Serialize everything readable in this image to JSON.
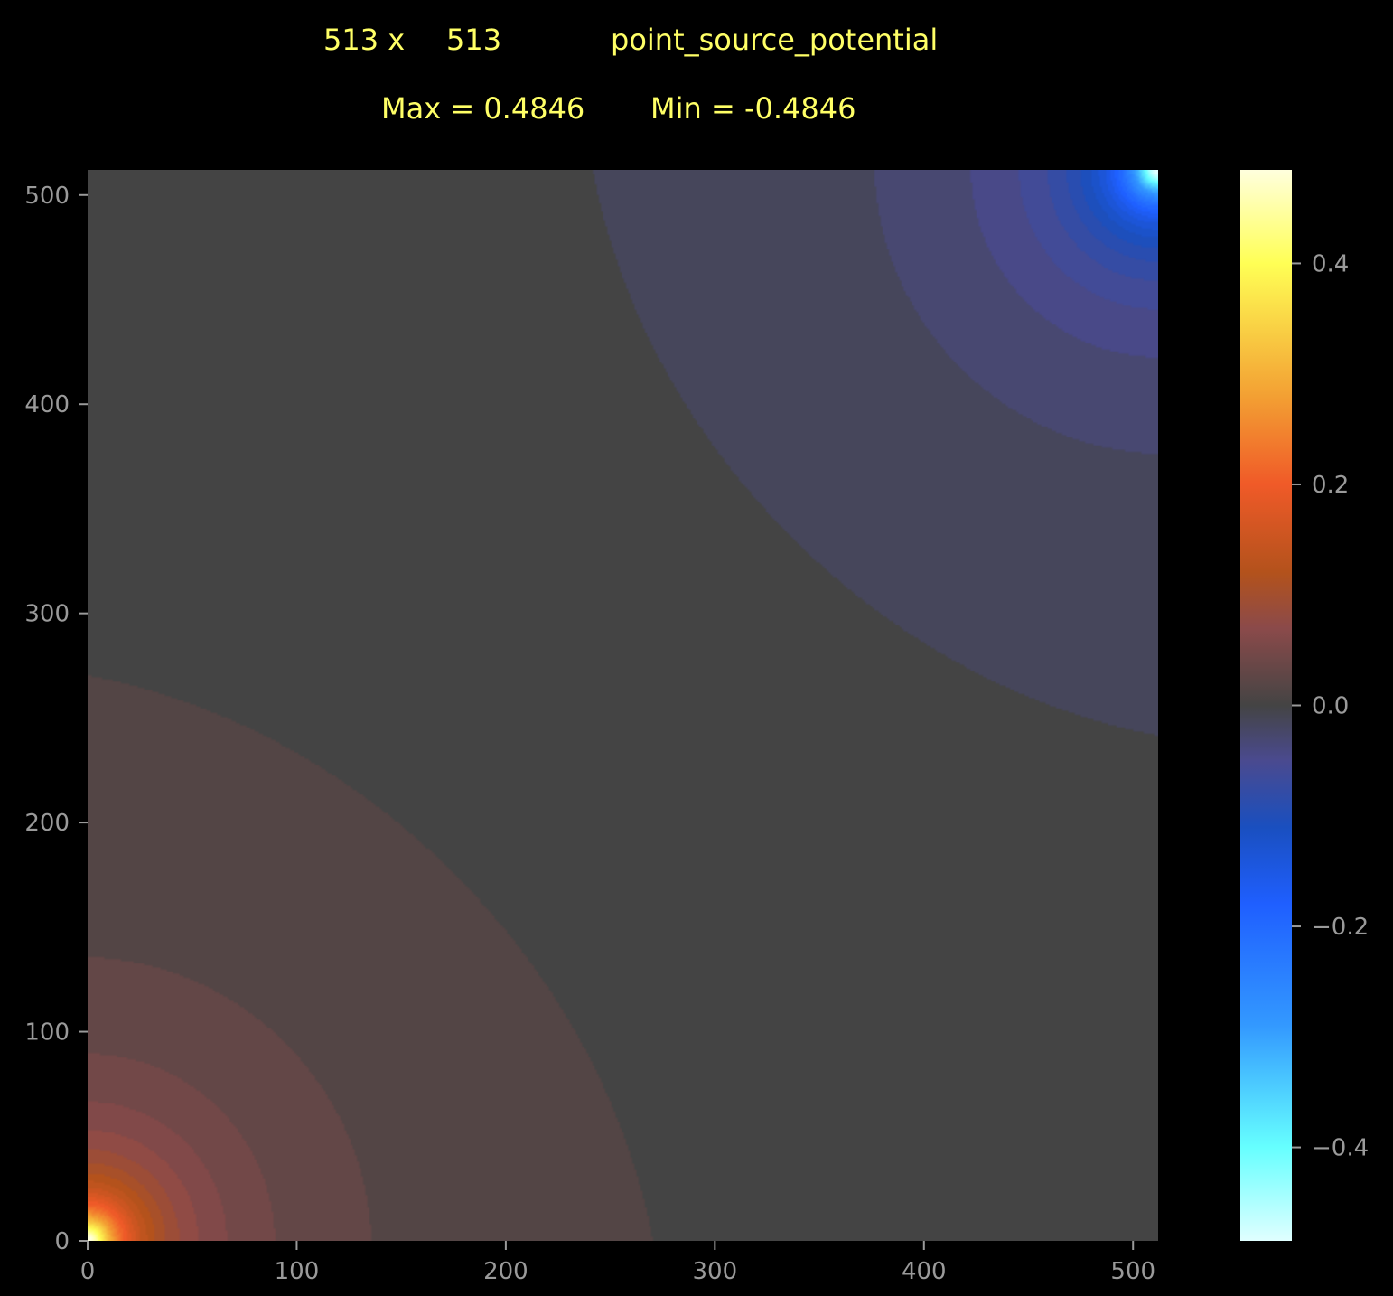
{
  "header": {
    "nx": "513 x",
    "ny": "513",
    "name": "point_source_potential",
    "max_label": "Max = 0.4846",
    "min_label": "Min = -0.4846"
  },
  "chart_data": {
    "type": "heatmap",
    "title": "",
    "xlabel": "",
    "ylabel": "",
    "grid_size": [
      513,
      513
    ],
    "field_max": 0.4846,
    "field_min": -0.4846,
    "max_location": [
      0,
      0
    ],
    "min_location": [
      512,
      512
    ],
    "xlim": [
      0,
      512
    ],
    "ylim": [
      0,
      512
    ],
    "x_ticks": [
      0,
      100,
      200,
      300,
      400,
      500
    ],
    "x_tick_labels": [
      "0",
      "100",
      "200",
      "300",
      "400",
      "500"
    ],
    "y_ticks": [
      0,
      100,
      200,
      300,
      400,
      500
    ],
    "y_tick_labels": [
      "0",
      "100",
      "200",
      "300",
      "400",
      "500"
    ],
    "colorbar": {
      "range": [
        -0.4846,
        0.4846
      ],
      "ticks": [
        0.4,
        0.2,
        0.0,
        -0.2,
        -0.4
      ],
      "tick_labels": [
        "0.4",
        "0.2",
        "0.0",
        "−0.2",
        "−0.4"
      ],
      "colormap_stops": [
        {
          "value": -0.4846,
          "color": "#e0ffff"
        },
        {
          "value": -0.4,
          "color": "#66ffff"
        },
        {
          "value": -0.29,
          "color": "#3399ff"
        },
        {
          "value": -0.18,
          "color": "#1f5fff"
        },
        {
          "value": -0.11,
          "color": "#1a4fbf"
        },
        {
          "value": -0.05,
          "color": "#4a4a8f"
        },
        {
          "value": 0.0,
          "color": "#444444"
        },
        {
          "value": 0.07,
          "color": "#8b4a4a"
        },
        {
          "value": 0.12,
          "color": "#b3521c"
        },
        {
          "value": 0.2,
          "color": "#f05a28"
        },
        {
          "value": 0.28,
          "color": "#f3a033"
        },
        {
          "value": 0.4,
          "color": "#ffff55"
        },
        {
          "value": 0.4846,
          "color": "#ffffdd"
        }
      ]
    },
    "grid": false,
    "background": "#000000",
    "text_color": "#ffff66",
    "tick_color": "#9a9a9a"
  }
}
